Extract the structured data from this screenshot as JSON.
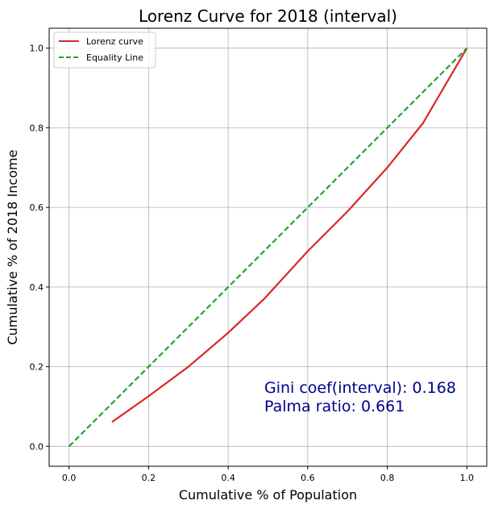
{
  "chart_data": {
    "type": "line",
    "title": "Lorenz Curve for 2018 (interval)",
    "xlabel": "Cumulative % of Population",
    "ylabel": "Cumulative % of 2018 Income",
    "xlim": [
      -0.05,
      1.05
    ],
    "ylim": [
      -0.05,
      1.05
    ],
    "x_ticks": [
      0.0,
      0.2,
      0.4,
      0.6,
      0.8,
      1.0
    ],
    "y_ticks": [
      0.0,
      0.2,
      0.4,
      0.6,
      0.8,
      1.0
    ],
    "x_tick_labels": [
      "0.0",
      "0.2",
      "0.4",
      "0.6",
      "0.8",
      "1.0"
    ],
    "y_tick_labels": [
      "0.0",
      "0.2",
      "0.4",
      "0.6",
      "0.8",
      "1.0"
    ],
    "grid": true,
    "legend_position": "top-left",
    "series": [
      {
        "name": "Lorenz curve",
        "color": "#d62728",
        "style": "solid",
        "x": [
          0.108,
          0.2,
          0.3,
          0.4,
          0.49,
          0.6,
          0.7,
          0.8,
          0.89,
          1.0
        ],
        "y": [
          0.061,
          0.126,
          0.2,
          0.285,
          0.37,
          0.49,
          0.59,
          0.7,
          0.812,
          1.0
        ]
      },
      {
        "name": "Equality Line",
        "color": "#2ca02c",
        "style": "dashed",
        "x": [
          0.0,
          1.0
        ],
        "y": [
          0.0,
          1.0
        ]
      }
    ],
    "annotations": [
      {
        "text": "Gini coef(interval): 0.168",
        "color": "#00008b"
      },
      {
        "text": "Palma ratio: 0.661",
        "color": "#00008b"
      }
    ]
  }
}
